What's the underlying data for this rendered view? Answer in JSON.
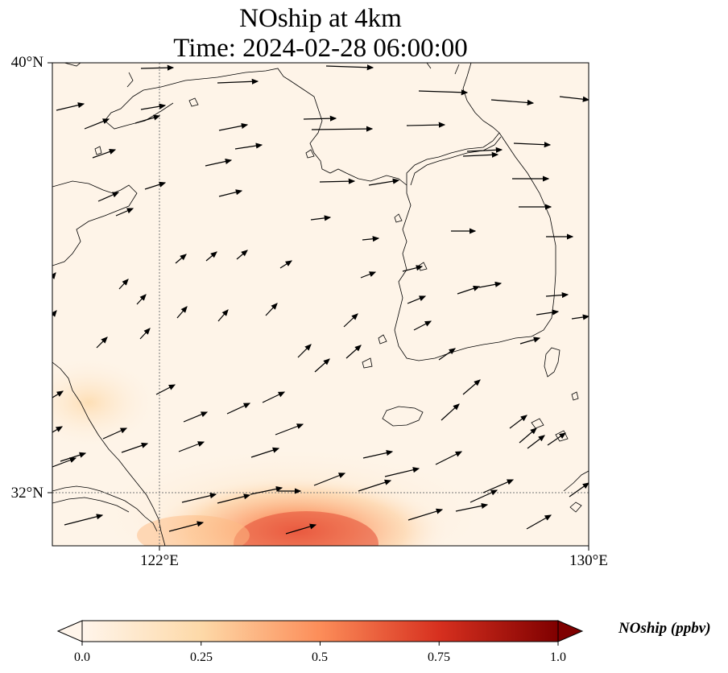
{
  "title_line1": "NOship at 4km",
  "title_line2": "Time: 2024-02-28 06:00:00",
  "lat_labels": [
    "40°N",
    "32°N"
  ],
  "lon_labels": [
    "122°E",
    "130°E"
  ],
  "colorbar": {
    "label": "NOship (ppbv)",
    "ticks": [
      "0.0",
      "0.25",
      "0.5",
      "0.75",
      "1.0"
    ],
    "min": 0.0,
    "max": 1.0,
    "colormap": [
      "#fff5eb",
      "#fdd9a8",
      "#fc8d59",
      "#d7301f",
      "#7f0000"
    ]
  },
  "map": {
    "extent_lon": [
      120,
      130
    ],
    "extent_lat": [
      31,
      40
    ],
    "gridlines_lon": [
      122
    ],
    "gridlines_lat": [
      32
    ]
  }
}
